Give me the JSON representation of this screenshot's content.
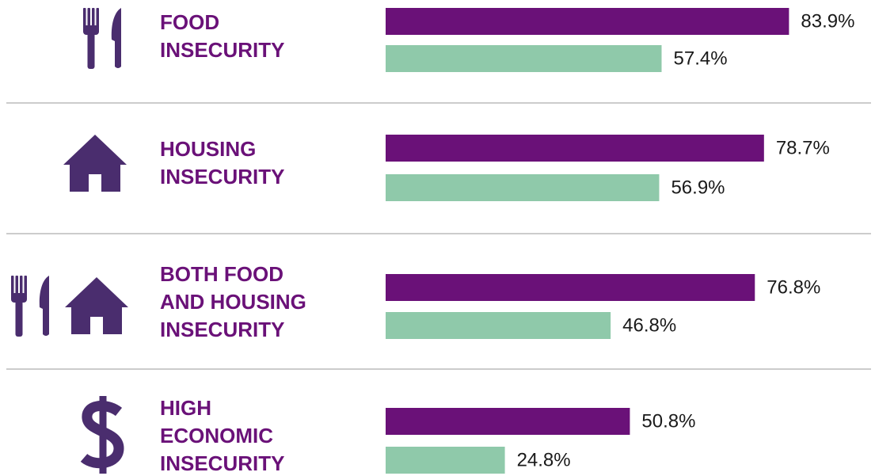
{
  "chart_data": {
    "type": "bar",
    "orientation": "horizontal",
    "categories": [
      [
        "FOOD",
        "INSECURITY"
      ],
      [
        "HOUSING",
        "INSECURITY"
      ],
      [
        "BOTH FOOD",
        "AND HOUSING",
        "INSECURITY"
      ],
      [
        "HIGH",
        "ECONOMIC",
        "INSECURITY"
      ]
    ],
    "series": [
      {
        "color": "#6a1178",
        "values": [
          83.9,
          78.7,
          76.8,
          50.8
        ],
        "value_labels": [
          "83.9%",
          "78.7%",
          "76.8%",
          "50.8%"
        ]
      },
      {
        "color": "#8fc9aa",
        "values": [
          57.4,
          56.9,
          46.8,
          24.8
        ],
        "value_labels": [
          "57.4%",
          "56.9%",
          "46.8%",
          "24.8%"
        ]
      }
    ],
    "xlim": [
      0,
      84
    ]
  }
}
